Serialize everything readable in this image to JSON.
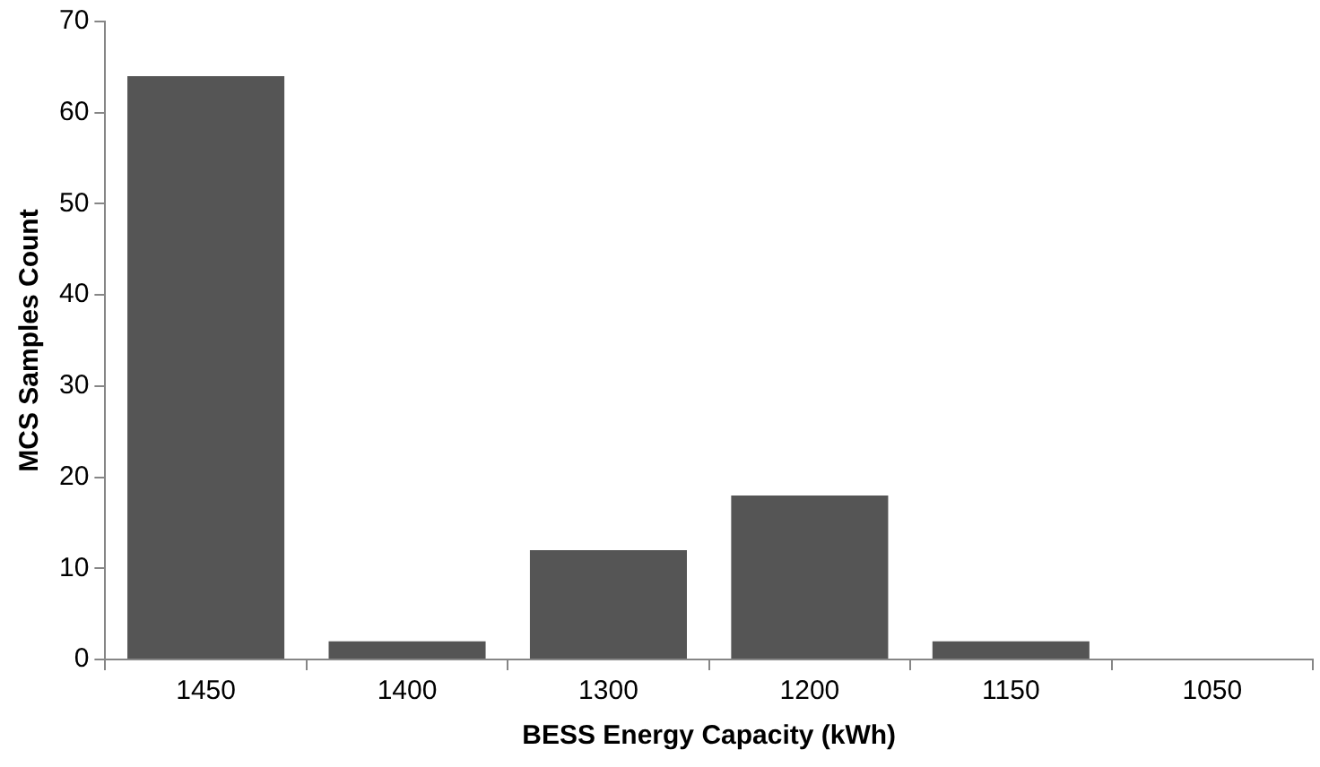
{
  "chart_data": {
    "type": "bar",
    "xlabel": "BESS Energy Capacity (kWh)",
    "ylabel": "MCS Samples Count",
    "categories": [
      "1450",
      "1400",
      "1300",
      "1200",
      "1150",
      "1050"
    ],
    "values": [
      64,
      2,
      12,
      18,
      2,
      0
    ],
    "color": "#555555",
    "ylim": [
      0,
      70
    ],
    "yticks": [
      0,
      10,
      20,
      30,
      40,
      50,
      60,
      70
    ],
    "grid": false,
    "legend": false
  }
}
